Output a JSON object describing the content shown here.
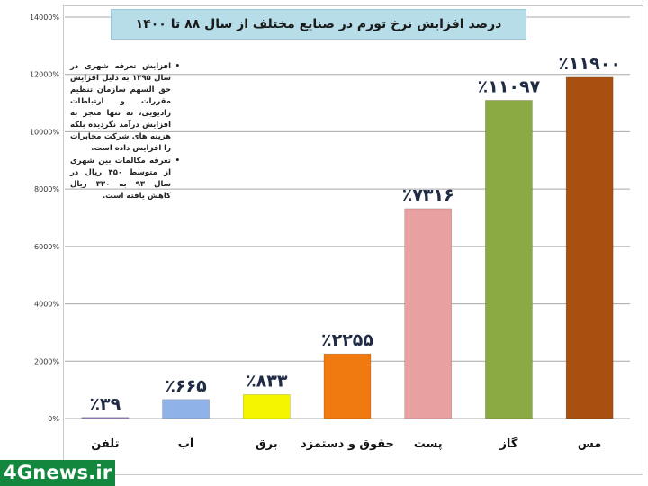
{
  "chart_data": {
    "type": "bar",
    "title": "درصد افزایش نرخ تورم در صنایع مختلف از سال ۸۸ تا ۱۴۰۰",
    "categories": [
      "تلفن",
      "آب",
      "برق",
      "حقوق و دستمزد",
      "پست",
      "گاز",
      "مس"
    ],
    "values": [
      39,
      665,
      833,
      2255,
      7316,
      11097,
      11900
    ],
    "value_labels": [
      "٪۳۹",
      "٪۶۶۵",
      "٪۸۳۳",
      "٪۲۲۵۵",
      "٪۷۳۱۶",
      "٪۱۱۰۹۷",
      "٪۱۱۹۰۰"
    ],
    "bar_colors": [
      "#9b7fc7",
      "#8fb3e8",
      "#f5f500",
      "#f07a10",
      "#e8a0a0",
      "#8caa44",
      "#a8500f"
    ],
    "ylim": [
      0,
      14000
    ],
    "yticks": [
      "0%",
      "2000%",
      "4000%",
      "6000%",
      "8000%",
      "10000%",
      "12000%",
      "14000%"
    ],
    "ytick_values": [
      0,
      2000,
      4000,
      6000,
      8000,
      10000,
      12000,
      14000
    ],
    "grid": true,
    "xlabel": "",
    "ylabel": ""
  },
  "notes": [
    "افزایش تعرفه شهری در سال ۱۳۹۵ به دلیل افزایش حق السهم سازمان تنظیم مقررات و ارتباطات رادیویی، نه تنها منجر به افزایش درآمد نگردیده بلکه هزینه های شرکت مخابرات را افزایش داده است.",
    "تعرفه مکالمات بین شهری از متوسط ۴۵۰ ریال در سال ۹۳ به ۳۳۰ ریال کاهش یافته است."
  ],
  "watermark": "4Gnews.ir",
  "colors": {
    "title_bg": "#b7dde8",
    "grid": "#a8a8a8",
    "logo_bg": "#14873e"
  }
}
